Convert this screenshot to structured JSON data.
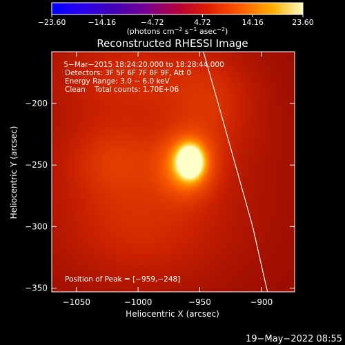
{
  "chart_data": {
    "type": "heatmap",
    "title": "Reconstructed RHESSI Image",
    "xlabel": "Heliocentric X (arcsec)",
    "ylabel": "Heliocentric Y (arcsec)",
    "xlim": [
      -1070,
      -873
    ],
    "ylim": [
      -353,
      -158
    ],
    "x_ticks": [
      -1050,
      -1000,
      -950,
      -900
    ],
    "y_ticks": [
      -200,
      -250,
      -300,
      -350
    ],
    "x_tick_labels": [
      "−1050",
      "−1000",
      "−950",
      "−900"
    ],
    "y_tick_labels": [
      "−200",
      "−250",
      "−300",
      "−350"
    ],
    "colorbar": {
      "min": -23.6,
      "max": 23.6,
      "tick_values": [
        -23.6,
        -14.16,
        -4.72,
        4.72,
        14.16,
        23.6
      ],
      "tick_labels": [
        "−23.60",
        "−14.16",
        "−4.72",
        "4.72",
        "14.16",
        "23.60"
      ],
      "units_prefix": "(photons cm",
      "units_exp1": "−2",
      "units_mid1": " s",
      "units_exp2": "−1",
      "units_mid2": " asec",
      "units_exp3": "−2",
      "units_suffix": ")"
    },
    "annotations": [
      " 5−Mar−2015 18:24:20.000 to 18:28:44.000",
      "Detectors: 3F 5F 6F 7F 8F 9F, Att 0",
      "Energy Range: 3.0 − 6.0 keV",
      "Clean    Total counts: 1.70E+06"
    ],
    "peak_label": "Position of Peak = [−959,−248]",
    "peak": {
      "x": -959,
      "y": -248
    },
    "sources": [
      {
        "x": -958,
        "y": -247,
        "value": 23.6,
        "sigma_x": 7,
        "sigma_y": 9
      },
      {
        "x": -960,
        "y": -250,
        "value": 12.0,
        "sigma_x": 16,
        "sigma_y": 18
      },
      {
        "x": -1020,
        "y": -245,
        "value": 5.0,
        "sigma_x": 28,
        "sigma_y": 22
      },
      {
        "x": -1010,
        "y": -175,
        "value": 4.5,
        "sigma_x": 45,
        "sigma_y": 25
      },
      {
        "x": -1000,
        "y": -300,
        "value": 4.0,
        "sigma_x": 45,
        "sigma_y": 30
      },
      {
        "x": -940,
        "y": -200,
        "value": 4.5,
        "sigma_x": 25,
        "sigma_y": 30
      },
      {
        "x": -985,
        "y": -255,
        "value": 3.5,
        "sigma_x": 80,
        "sigma_y": 80
      }
    ],
    "limb": [
      {
        "x": -947,
        "y": -158
      },
      {
        "x": -935,
        "y": -200
      },
      {
        "x": -921,
        "y": -250
      },
      {
        "x": -907,
        "y": -300
      },
      {
        "x": -898,
        "y": -340
      },
      {
        "x": -895,
        "y": -353
      }
    ],
    "colors": {
      "background": "#000000",
      "text": "#ffffff",
      "limb": "#ffffff"
    }
  },
  "footer": {
    "timestamp": "19−May−2022 08:55"
  }
}
